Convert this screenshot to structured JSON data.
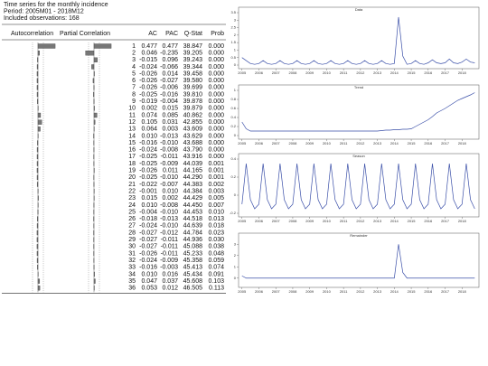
{
  "header": {
    "title": "Time series for the monthly incidence",
    "period": "Period: 2005M01 - 2018M12",
    "observations": "Included observations: 168"
  },
  "table": {
    "columns": [
      "Autocorrelation",
      "Partial Correlation",
      "AC",
      "PAC",
      "Q-Stat",
      "Prob"
    ],
    "rows": [
      [
        "1",
        "0.477",
        "0.477",
        "38.847",
        "0.000"
      ],
      [
        "2",
        "0.046",
        "-0.235",
        "39.205",
        "0.000"
      ],
      [
        "3",
        "-0.015",
        "0.096",
        "39.243",
        "0.000"
      ],
      [
        "4",
        "-0.024",
        "-0.066",
        "39.344",
        "0.000"
      ],
      [
        "5",
        "-0.026",
        "0.014",
        "39.458",
        "0.000"
      ],
      [
        "6",
        "-0.026",
        "-0.027",
        "39.580",
        "0.000"
      ],
      [
        "7",
        "-0.026",
        "-0.006",
        "39.699",
        "0.000"
      ],
      [
        "8",
        "-0.025",
        "-0.016",
        "39.810",
        "0.000"
      ],
      [
        "9",
        "-0.019",
        "-0.004",
        "39.878",
        "0.000"
      ],
      [
        "10",
        "0.002",
        "0.015",
        "39.879",
        "0.000"
      ],
      [
        "11",
        "0.074",
        "0.085",
        "40.862",
        "0.000"
      ],
      [
        "12",
        "0.105",
        "0.031",
        "42.855",
        "0.000"
      ],
      [
        "13",
        "0.064",
        "0.003",
        "43.609",
        "0.000"
      ],
      [
        "14",
        "0.010",
        "-0.013",
        "43.629",
        "0.000"
      ],
      [
        "15",
        "-0.016",
        "-0.010",
        "43.688",
        "0.000"
      ],
      [
        "16",
        "-0.024",
        "-0.008",
        "43.790",
        "0.000"
      ],
      [
        "17",
        "-0.025",
        "-0.011",
        "43.916",
        "0.000"
      ],
      [
        "18",
        "-0.025",
        "-0.009",
        "44.039",
        "0.001"
      ],
      [
        "19",
        "-0.026",
        "0.011",
        "44.165",
        "0.001"
      ],
      [
        "20",
        "-0.025",
        "-0.010",
        "44.290",
        "0.001"
      ],
      [
        "21",
        "-0.022",
        "-0.007",
        "44.383",
        "0.002"
      ],
      [
        "22",
        "-0.001",
        "0.010",
        "44.384",
        "0.003"
      ],
      [
        "23",
        "0.015",
        "0.002",
        "44.429",
        "0.005"
      ],
      [
        "24",
        "0.010",
        "-0.008",
        "44.450",
        "0.007"
      ],
      [
        "25",
        "-0.004",
        "-0.010",
        "44.453",
        "0.010"
      ],
      [
        "26",
        "-0.018",
        "-0.013",
        "44.518",
        "0.013"
      ],
      [
        "27",
        "-0.024",
        "-0.010",
        "44.639",
        "0.018"
      ],
      [
        "28",
        "-0.027",
        "-0.012",
        "44.784",
        "0.023"
      ],
      [
        "29",
        "-0.027",
        "-0.011",
        "44.936",
        "0.030"
      ],
      [
        "30",
        "-0.027",
        "-0.011",
        "45.088",
        "0.038"
      ],
      [
        "31",
        "-0.026",
        "-0.011",
        "45.233",
        "0.048"
      ],
      [
        "32",
        "-0.024",
        "-0.009",
        "45.358",
        "0.059"
      ],
      [
        "33",
        "-0.016",
        "-0.003",
        "45.413",
        "0.074"
      ],
      [
        "34",
        "0.010",
        "0.016",
        "45.434",
        "0.091"
      ],
      [
        "35",
        "0.047",
        "0.037",
        "45.608",
        "0.103"
      ],
      [
        "36",
        "0.053",
        "0.012",
        "46.505",
        "0.113"
      ]
    ]
  },
  "chart_data": [
    {
      "type": "line",
      "title": "Data",
      "color": "#3a4fa8",
      "x": [
        2005,
        2005.25,
        2005.5,
        2005.75,
        2006,
        2006.25,
        2006.5,
        2006.75,
        2007,
        2007.25,
        2007.5,
        2007.75,
        2008,
        2008.25,
        2008.5,
        2008.75,
        2009,
        2009.25,
        2009.5,
        2009.75,
        2010,
        2010.25,
        2010.5,
        2010.75,
        2011,
        2011.25,
        2011.5,
        2011.75,
        2012,
        2012.25,
        2012.5,
        2012.75,
        2013,
        2013.25,
        2013.5,
        2013.75,
        2014,
        2014.25,
        2014.5,
        2014.75,
        2015,
        2015.25,
        2015.5,
        2015.75,
        2016,
        2016.25,
        2016.5,
        2016.75,
        2017,
        2017.25,
        2017.5,
        2017.75,
        2018,
        2018.25,
        2018.5,
        2018.75
      ],
      "values": [
        0.5,
        0.3,
        0.1,
        0.05,
        0.1,
        0.3,
        0.1,
        0.05,
        0.1,
        0.3,
        0.1,
        0.05,
        0.1,
        0.3,
        0.1,
        0.05,
        0.1,
        0.3,
        0.1,
        0.05,
        0.1,
        0.3,
        0.1,
        0.05,
        0.1,
        0.3,
        0.1,
        0.05,
        0.1,
        0.3,
        0.1,
        0.05,
        0.1,
        0.3,
        0.1,
        0.05,
        0.1,
        3.2,
        0.6,
        0.05,
        0.1,
        0.3,
        0.1,
        0.05,
        0.15,
        0.35,
        0.15,
        0.1,
        0.15,
        0.4,
        0.15,
        0.1,
        0.2,
        0.4,
        0.2,
        0.15
      ],
      "xlim": [
        2004.8,
        2019
      ],
      "ylim": [
        0,
        3.5
      ],
      "xticks": [
        2005,
        2006,
        2007,
        2008,
        2009,
        2010,
        2011,
        2012,
        2013,
        2014,
        2015,
        2016,
        2017,
        2018
      ],
      "yticks": [
        0,
        0.5,
        1,
        1.5,
        2,
        2.5,
        3,
        3.5
      ]
    },
    {
      "type": "line",
      "title": "Trend",
      "color": "#3a4fa8",
      "x": [
        2005,
        2005.25,
        2005.5,
        2005.75,
        2006,
        2006.25,
        2006.5,
        2006.75,
        2007,
        2007.25,
        2007.5,
        2007.75,
        2008,
        2008.25,
        2008.5,
        2008.75,
        2009,
        2009.25,
        2009.5,
        2009.75,
        2010,
        2010.25,
        2010.5,
        2010.75,
        2011,
        2011.25,
        2011.5,
        2011.75,
        2012,
        2012.25,
        2012.5,
        2012.75,
        2013,
        2013.25,
        2013.5,
        2013.75,
        2014,
        2014.25,
        2014.5,
        2014.75,
        2015,
        2015.25,
        2015.5,
        2015.75,
        2016,
        2016.25,
        2016.5,
        2016.75,
        2017,
        2017.25,
        2017.5,
        2017.75,
        2018,
        2018.25,
        2018.5,
        2018.75
      ],
      "values": [
        0.3,
        0.15,
        0.1,
        0.1,
        0.1,
        0.1,
        0.1,
        0.1,
        0.1,
        0.1,
        0.1,
        0.1,
        0.1,
        0.1,
        0.1,
        0.1,
        0.1,
        0.1,
        0.1,
        0.1,
        0.1,
        0.1,
        0.1,
        0.1,
        0.1,
        0.1,
        0.1,
        0.1,
        0.1,
        0.1,
        0.1,
        0.1,
        0.1,
        0.11,
        0.12,
        0.12,
        0.13,
        0.13,
        0.14,
        0.14,
        0.15,
        0.2,
        0.25,
        0.3,
        0.35,
        0.42,
        0.5,
        0.55,
        0.6,
        0.66,
        0.72,
        0.78,
        0.82,
        0.86,
        0.9,
        0.95
      ],
      "xlim": [
        2004.8,
        2019
      ],
      "ylim": [
        0,
        1
      ],
      "xticks": [
        2005,
        2006,
        2007,
        2008,
        2009,
        2010,
        2011,
        2012,
        2013,
        2014,
        2015,
        2016,
        2017,
        2018
      ],
      "yticks": [
        0,
        0.2,
        0.4,
        0.6,
        0.8,
        1
      ]
    },
    {
      "type": "line",
      "title": "Season",
      "color": "#3a4fa8",
      "x": [
        2005,
        2005.25,
        2005.5,
        2005.75,
        2006,
        2006.25,
        2006.5,
        2006.75,
        2007,
        2007.25,
        2007.5,
        2007.75,
        2008,
        2008.25,
        2008.5,
        2008.75,
        2009,
        2009.25,
        2009.5,
        2009.75,
        2010,
        2010.25,
        2010.5,
        2010.75,
        2011,
        2011.25,
        2011.5,
        2011.75,
        2012,
        2012.25,
        2012.5,
        2012.75,
        2013,
        2013.25,
        2013.5,
        2013.75,
        2014,
        2014.25,
        2014.5,
        2014.75,
        2015,
        2015.25,
        2015.5,
        2015.75,
        2016,
        2016.25,
        2016.5,
        2016.75,
        2017,
        2017.25,
        2017.5,
        2017.75,
        2018,
        2018.25,
        2018.5,
        2018.75
      ],
      "values": [
        -0.1,
        0.35,
        -0.05,
        -0.15,
        -0.1,
        0.35,
        -0.05,
        -0.15,
        -0.1,
        0.35,
        -0.05,
        -0.15,
        -0.1,
        0.35,
        -0.05,
        -0.15,
        -0.1,
        0.35,
        -0.05,
        -0.15,
        -0.1,
        0.35,
        -0.05,
        -0.15,
        -0.1,
        0.35,
        -0.05,
        -0.15,
        -0.1,
        0.35,
        -0.05,
        -0.15,
        -0.1,
        0.35,
        -0.05,
        -0.15,
        -0.1,
        0.35,
        -0.05,
        -0.15,
        -0.1,
        0.35,
        -0.05,
        -0.15,
        -0.1,
        0.35,
        -0.05,
        -0.15,
        -0.1,
        0.35,
        -0.05,
        -0.15,
        -0.1,
        0.35,
        -0.05,
        -0.15
      ],
      "xlim": [
        2004.8,
        2019
      ],
      "ylim": [
        -0.2,
        0.4
      ],
      "xticks": [
        2005,
        2006,
        2007,
        2008,
        2009,
        2010,
        2011,
        2012,
        2013,
        2014,
        2015,
        2016,
        2017,
        2018
      ],
      "yticks": [
        -0.2,
        0,
        0.2,
        0.4
      ]
    },
    {
      "type": "line",
      "title": "Remainder",
      "color": "#3a4fa8",
      "x": [
        2005,
        2005.25,
        2005.5,
        2005.75,
        2006,
        2006.25,
        2006.5,
        2006.75,
        2007,
        2007.25,
        2007.5,
        2007.75,
        2008,
        2008.25,
        2008.5,
        2008.75,
        2009,
        2009.25,
        2009.5,
        2009.75,
        2010,
        2010.25,
        2010.5,
        2010.75,
        2011,
        2011.25,
        2011.5,
        2011.75,
        2012,
        2012.25,
        2012.5,
        2012.75,
        2013,
        2013.25,
        2013.5,
        2013.75,
        2014,
        2014.25,
        2014.5,
        2014.75,
        2015,
        2015.25,
        2015.5,
        2015.75,
        2016,
        2016.25,
        2016.5,
        2016.75,
        2017,
        2017.25,
        2017.5,
        2017.75,
        2018,
        2018.25,
        2018.5,
        2018.75
      ],
      "values": [
        0.2,
        0,
        0,
        0,
        0,
        0,
        0,
        0,
        0,
        0,
        0,
        0,
        0,
        0,
        0,
        0,
        0,
        0,
        0,
        0,
        0,
        0,
        0,
        0,
        0,
        0,
        0,
        0,
        0,
        0,
        0,
        0,
        0,
        0,
        0,
        0,
        0,
        3,
        0.5,
        0,
        0,
        0,
        0,
        0,
        0,
        0,
        0,
        0,
        0,
        0,
        0,
        0,
        0,
        0,
        0,
        0
      ],
      "xlim": [
        2004.8,
        2019
      ],
      "ylim": [
        -0.5,
        3.5
      ],
      "xticks": [
        2005,
        2006,
        2007,
        2008,
        2009,
        2010,
        2011,
        2012,
        2013,
        2014,
        2015,
        2016,
        2017,
        2018
      ],
      "yticks": [
        0,
        1,
        2,
        3
      ]
    }
  ]
}
